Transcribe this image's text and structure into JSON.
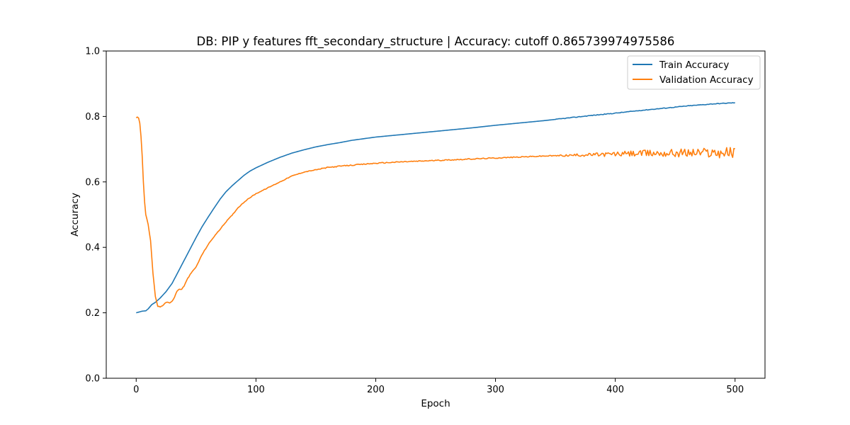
{
  "chart_data": {
    "type": "line",
    "title": "DB: PIP y features fft_secondary_structure | Accuracy: cutoff 0.865739974975586",
    "xlabel": "Epoch",
    "ylabel": "Accuracy",
    "xlim": [
      -25,
      525
    ],
    "ylim": [
      0.0,
      1.0
    ],
    "xticks": [
      "0",
      "100",
      "200",
      "300",
      "400",
      "500"
    ],
    "yticks": [
      "0.0",
      "0.2",
      "0.4",
      "0.6",
      "0.8",
      "1.0"
    ],
    "grid": false,
    "legend_position": "top-right",
    "series": [
      {
        "name": "Train Accuracy",
        "color": "#1f77b4",
        "x": [
          0,
          3,
          5,
          8,
          10,
          13,
          16,
          20,
          25,
          30,
          35,
          40,
          45,
          50,
          55,
          60,
          65,
          70,
          75,
          80,
          85,
          90,
          95,
          100,
          110,
          120,
          130,
          140,
          150,
          160,
          170,
          180,
          190,
          200,
          220,
          240,
          260,
          280,
          300,
          320,
          340,
          360,
          380,
          400,
          420,
          440,
          460,
          480,
          500
        ],
        "y": [
          0.2,
          0.203,
          0.205,
          0.206,
          0.212,
          0.225,
          0.232,
          0.245,
          0.265,
          0.29,
          0.325,
          0.36,
          0.395,
          0.43,
          0.463,
          0.492,
          0.52,
          0.547,
          0.57,
          0.588,
          0.604,
          0.62,
          0.633,
          0.643,
          0.66,
          0.675,
          0.688,
          0.698,
          0.707,
          0.714,
          0.72,
          0.727,
          0.732,
          0.737,
          0.744,
          0.751,
          0.758,
          0.765,
          0.773,
          0.78,
          0.787,
          0.795,
          0.803,
          0.81,
          0.818,
          0.825,
          0.832,
          0.838,
          0.842
        ]
      },
      {
        "name": "Validation Accuracy",
        "color": "#ff7f0e",
        "x": [
          0,
          1,
          2,
          3,
          4,
          5,
          6,
          7,
          8,
          10,
          12,
          14,
          16,
          18,
          20,
          22,
          24,
          26,
          28,
          30,
          32,
          34,
          36,
          38,
          40,
          43,
          46,
          50,
          55,
          60,
          65,
          70,
          75,
          80,
          85,
          90,
          95,
          100,
          110,
          120,
          130,
          140,
          150,
          160,
          170,
          180,
          190,
          200,
          220,
          240,
          260,
          280,
          300,
          320,
          340,
          360,
          380,
          400,
          420,
          440,
          460,
          480,
          500
        ],
        "y": [
          0.795,
          0.798,
          0.796,
          0.78,
          0.74,
          0.68,
          0.6,
          0.54,
          0.5,
          0.47,
          0.42,
          0.32,
          0.25,
          0.22,
          0.218,
          0.222,
          0.23,
          0.233,
          0.23,
          0.235,
          0.248,
          0.266,
          0.272,
          0.272,
          0.282,
          0.305,
          0.322,
          0.34,
          0.378,
          0.408,
          0.433,
          0.455,
          0.478,
          0.498,
          0.521,
          0.538,
          0.552,
          0.564,
          0.582,
          0.6,
          0.618,
          0.63,
          0.637,
          0.644,
          0.648,
          0.651,
          0.654,
          0.657,
          0.661,
          0.664,
          0.667,
          0.67,
          0.673,
          0.676,
          0.679,
          0.681,
          0.683,
          0.685,
          0.687,
          0.688,
          0.689,
          0.69,
          0.69
        ]
      }
    ]
  }
}
